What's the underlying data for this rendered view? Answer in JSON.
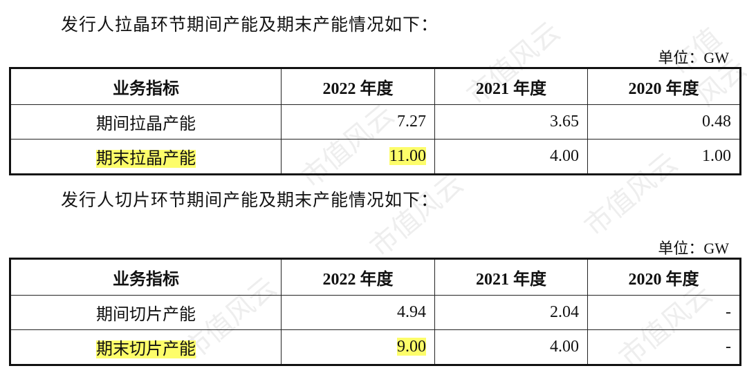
{
  "section1": {
    "intro": "发行人拉晶环节期间产能及期末产能情况如下：",
    "unit": "单位：GW",
    "headers": [
      "业务指标",
      "2022 年度",
      "2021 年度",
      "2020 年度"
    ],
    "rows": [
      {
        "label": "期间拉晶产能",
        "values": [
          "7.27",
          "3.65",
          "0.48"
        ],
        "highlighted": false
      },
      {
        "label": "期末拉晶产能",
        "values": [
          "11.00",
          "4.00",
          "1.00"
        ],
        "highlighted": true
      }
    ]
  },
  "section2": {
    "intro": "发行人切片环节期间产能及期末产能情况如下：",
    "unit": "单位：GW",
    "headers": [
      "业务指标",
      "2022 年度",
      "2021 年度",
      "2020 年度"
    ],
    "rows": [
      {
        "label": "期间切片产能",
        "values": [
          "4.94",
          "2.04",
          "-"
        ],
        "highlighted": false
      },
      {
        "label": "期末切片产能",
        "values": [
          "9.00",
          "4.00",
          "-"
        ],
        "highlighted": true
      }
    ]
  },
  "watermark": "市值风云",
  "highlight_color": "#fdfd6a"
}
